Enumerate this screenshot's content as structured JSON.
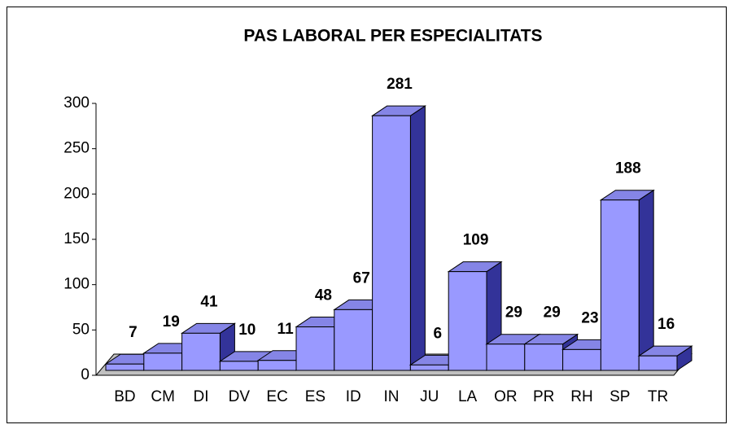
{
  "chart_data": {
    "type": "bar3d",
    "title": "PAS LABORAL PER ESPECIALITATS",
    "categories": [
      "BD",
      "CM",
      "DI",
      "DV",
      "EC",
      "ES",
      "ID",
      "IN",
      "JU",
      "LA",
      "OR",
      "PR",
      "RH",
      "SP",
      "TR"
    ],
    "values": [
      7,
      19,
      41,
      10,
      11,
      48,
      67,
      281,
      6,
      109,
      29,
      29,
      23,
      188,
      16
    ],
    "color": "#9999ff",
    "ylim": [
      0,
      300
    ],
    "yticks": [
      0,
      50,
      100,
      150,
      200,
      250,
      300
    ]
  }
}
